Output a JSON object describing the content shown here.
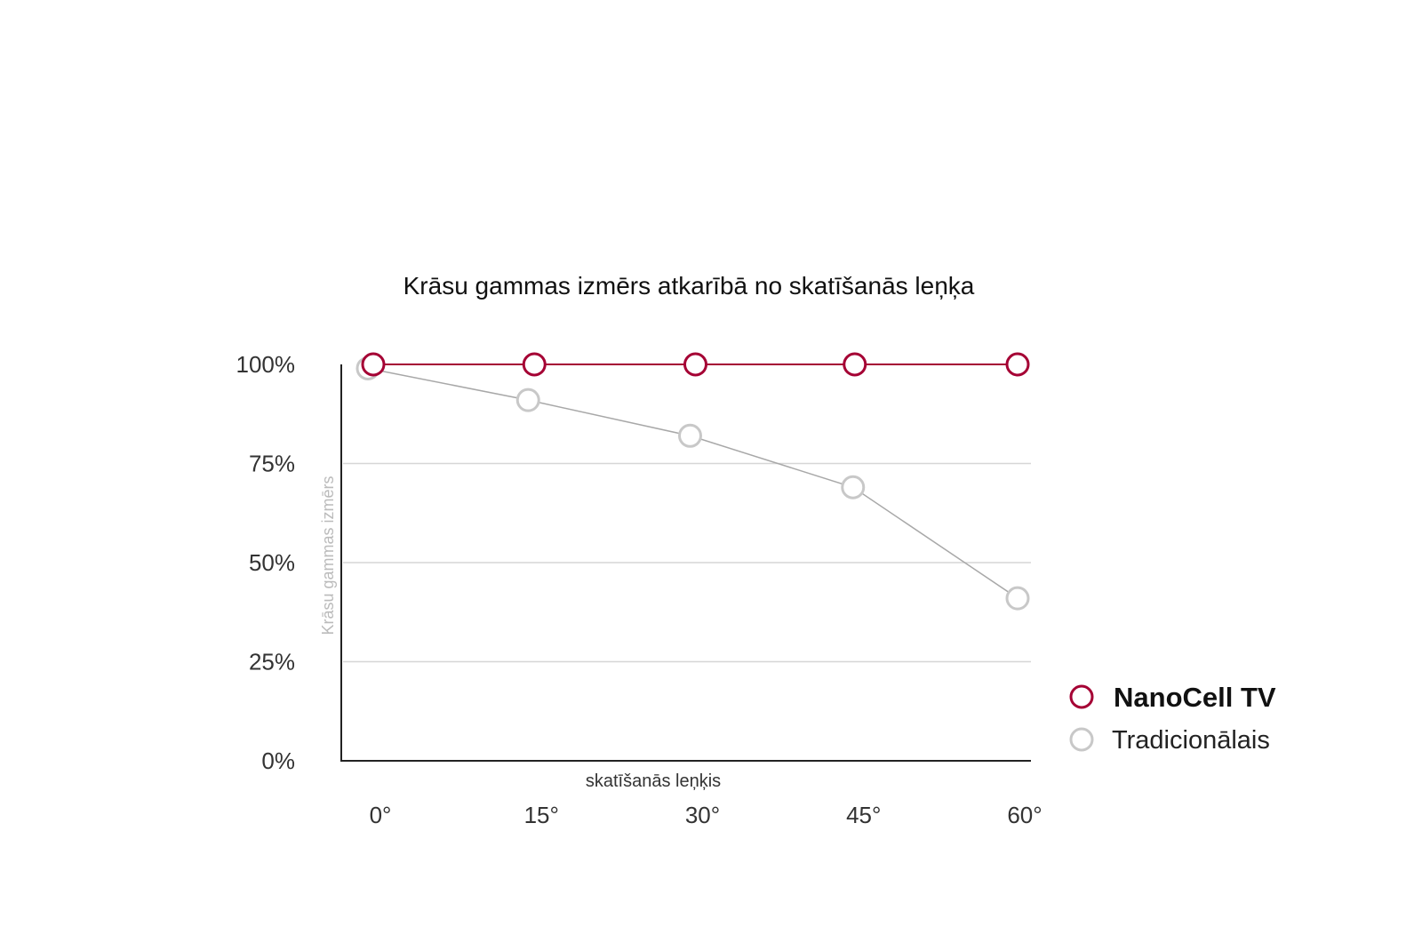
{
  "chart_data": {
    "type": "line",
    "title": "Krāsu gammas izmērs atkarībā no skatīšanās leņķa",
    "xlabel": "skatīšanās leņķis",
    "ylabel": "Krāsu gammas izmērs",
    "categories": [
      "0°",
      "15°",
      "30°",
      "45°",
      "60°"
    ],
    "y_ticks": [
      "0%",
      "25%",
      "50%",
      "75%",
      "100%"
    ],
    "ylim": [
      0,
      100
    ],
    "grid": true,
    "legend_position": "right",
    "series": [
      {
        "name": "NanoCell TV",
        "values": [
          100,
          100,
          100,
          100,
          100
        ],
        "color": "#a50034"
      },
      {
        "name": "Tradicionālais",
        "values": [
          99,
          91,
          82,
          69,
          41
        ],
        "color": "#b4b4b4"
      }
    ]
  }
}
